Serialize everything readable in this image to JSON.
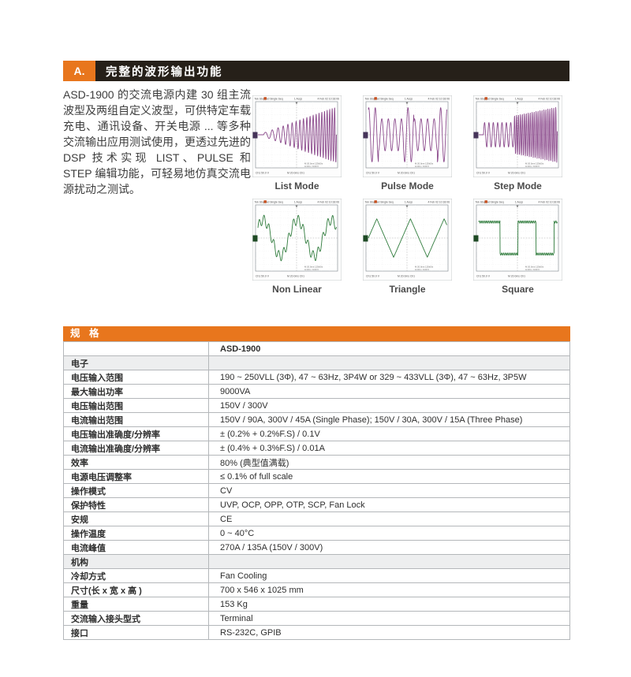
{
  "feature": {
    "index": "A.",
    "title": "完整的波形输出功能"
  },
  "intro": {
    "text": "ASD-1900 的交流电源内建 30 组主流波型及两组自定义波型，可供特定车载充电、通讯设备、开关电源 ... 等多种交流输出应用测试使用，更透过先进的 DSP 技术实现 LIST、PULSE 和 STEP 编辑功能，可轻易地仿真交流电源扰动之测试。"
  },
  "colors": {
    "accent_orange": "#E8761D",
    "header_black": "#262019",
    "wave_purple": "#8B4A8C",
    "wave_green": "#2F7B3C"
  },
  "scope_chrome": {
    "header_left": "Tek  Stopped  Single Seq",
    "header_mid": "1 Acqs",
    "header_right": "4 Feb 02  10:18:06",
    "footer_left": "Ch1  50.0 V",
    "footer_mid": "M 20.0ms    Ch1",
    "info1": "M 20.0ms  125kS/s",
    "info2": "A  Ch1  /  0.00 V"
  },
  "scopes": [
    {
      "label": "List Mode",
      "wave": "list",
      "color": "#8B4A8C",
      "marker": "#46345A"
    },
    {
      "label": "Pulse Mode",
      "wave": "pulse",
      "color": "#8B4A8C",
      "marker": "#46345A"
    },
    {
      "label": "Step Mode",
      "wave": "step",
      "color": "#8B4A8C",
      "marker": "#46345A"
    },
    {
      "label": "Non Linear",
      "wave": "nonlinear",
      "color": "#2F7B3C",
      "marker": "#1E4A24"
    },
    {
      "label": "Triangle",
      "wave": "triangle",
      "color": "#2F7B3C",
      "marker": "#1E4A24"
    },
    {
      "label": "Square",
      "wave": "square",
      "color": "#2F7B3C",
      "marker": "#1E4A24"
    }
  ],
  "spec_table": {
    "title": "规  格",
    "model": "ASD-1900",
    "sections": [
      {
        "name": "电子",
        "rows": [
          {
            "label": "电压输入范围",
            "value": "190 ~ 250VLL (3Φ), 47 ~ 63Hz, 3P4W or 329 ~ 433VLL (3Φ), 47 ~ 63Hz, 3P5W"
          },
          {
            "label": "最大输出功率",
            "value": "9000VA"
          },
          {
            "label": "电压输出范围",
            "value": "150V / 300V"
          },
          {
            "label": "电流输出范围",
            "value": "150V / 90A, 300V / 45A (Single Phase); 150V / 30A, 300V / 15A (Three Phase)"
          },
          {
            "label": "电压输出准确度/分辨率",
            "value": "± (0.2% + 0.2%F.S) / 0.1V"
          },
          {
            "label": "电流输出准确度/分辨率",
            "value": "± (0.4% + 0.3%F.S) / 0.01A"
          },
          {
            "label": "效率",
            "value": "80% (典型值满载)"
          },
          {
            "label": "电源电压调整率",
            "value": "≤ 0.1% of full scale"
          },
          {
            "label": "操作模式",
            "value": "CV"
          },
          {
            "label": "保护特性",
            "value": "UVP, OCP, OPP, OTP, SCP, Fan Lock"
          },
          {
            "label": "安规",
            "value": "CE"
          },
          {
            "label": "操作温度",
            "value": "0 ~ 40°C"
          },
          {
            "label": "电流峰值",
            "value": "270A / 135A (150V / 300V)"
          }
        ]
      },
      {
        "name": "机构",
        "rows": [
          {
            "label": "冷却方式",
            "value": "Fan Cooling"
          },
          {
            "label": "尺寸(长 x 宽 x 高 )",
            "value": "700 x 546 x 1025 mm"
          },
          {
            "label": "重量",
            "value": "153 Kg"
          },
          {
            "label": "交流输入接头型式",
            "value": "Terminal"
          },
          {
            "label": "接口",
            "value": "RS-232C, GPIB"
          }
        ]
      }
    ]
  }
}
